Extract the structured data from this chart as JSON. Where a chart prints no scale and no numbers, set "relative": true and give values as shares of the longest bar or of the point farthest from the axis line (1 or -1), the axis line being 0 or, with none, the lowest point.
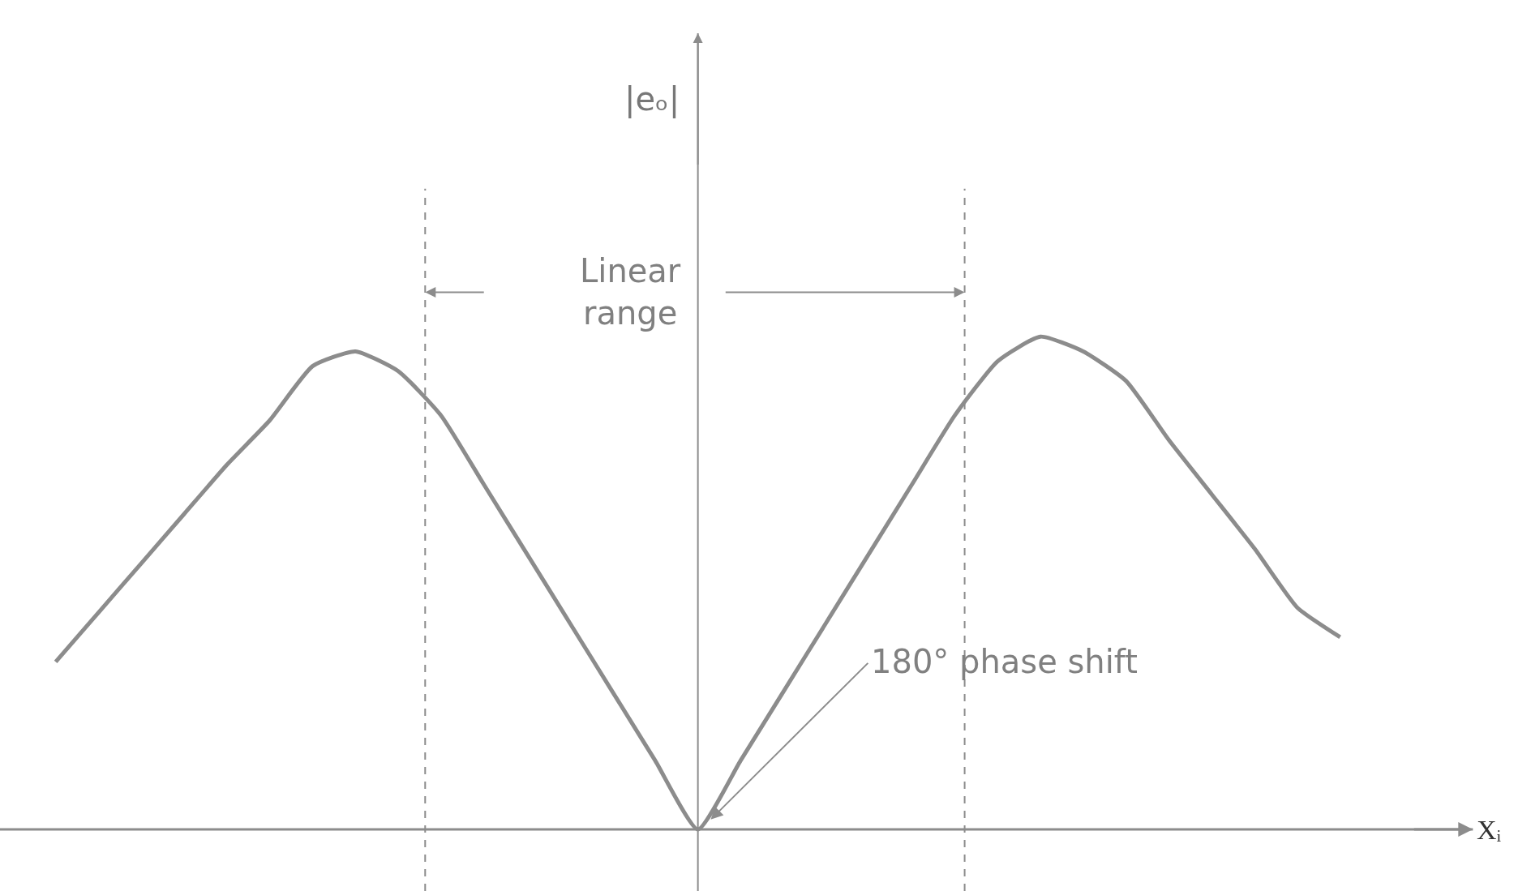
{
  "chart_data": {
    "type": "line",
    "relative": true,
    "xlabel": "Xᵢ",
    "categories": [
      null,
      null,
      null,
      null,
      null,
      null,
      null,
      null,
      null,
      null,
      null,
      null,
      null,
      null,
      null,
      null,
      null,
      null,
      null,
      null,
      null,
      null,
      null,
      null,
      null,
      null,
      null,
      null,
      null,
      null,
      null
    ],
    "series": [
      {
        "color": "#8c8c8c",
        "values": [
          0.34,
          0.44,
          0.54,
          0.64,
          0.74,
          0.83,
          0.94,
          0.97,
          0.93,
          0.84,
          0.7,
          0.56,
          0.42,
          0.28,
          0.14,
          0,
          0.14,
          0.28,
          0.42,
          0.56,
          0.7,
          0.84,
          0.95,
          1,
          0.97,
          0.91,
          0.79,
          0.68,
          0.57,
          0.45,
          0.39
        ]
      }
    ],
    "annotations": [
      "|eₒ|",
      "Linear\nrange",
      "180° phase shift"
    ],
    "legend": false,
    "marker": "none",
    "line_style": "solid"
  }
}
